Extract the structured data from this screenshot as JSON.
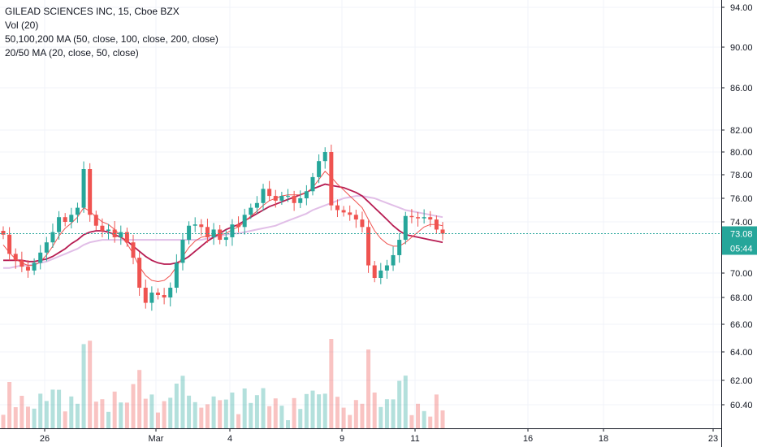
{
  "chart_data": {
    "type": "candlestick",
    "title": "GILEAD SCIENCES INC, 15, Cboe BZX",
    "indicators": [
      "Vol (20)",
      "50,100,200 MA (50, close, 100, close, 200, close)",
      "20/50 MA (20, close, 50, close)"
    ],
    "y_ticks": [
      "94.00",
      "90.00",
      "86.00",
      "82.00",
      "80.00",
      "78.00",
      "76.00",
      "74.00",
      "70.00",
      "68.00",
      "66.00",
      "64.00",
      "62.00",
      "60.40"
    ],
    "x_ticks": [
      "26",
      "Mar",
      "4",
      "9",
      "11",
      "16",
      "18",
      "23"
    ],
    "last_price": "73.08",
    "countdown": "05:44",
    "series": [
      {
        "name": "price",
        "kind": "ohlc",
        "close": [
          73.0,
          71.5,
          71.0,
          70.5,
          70.2,
          70.8,
          71.6,
          72.4,
          73.2,
          74.4,
          74.0,
          74.6,
          75.2,
          78.5,
          74.6,
          73.7,
          73.3,
          73.4,
          72.8,
          73.2,
          72.4,
          71.2,
          68.8,
          67.6,
          68.4,
          68.2,
          68.0,
          68.8,
          70.8,
          72.6,
          73.7,
          73.8,
          73.6,
          72.8,
          73.4,
          72.6,
          72.8,
          73.8,
          73.6,
          74.6,
          75.2,
          75.6,
          76.8,
          76.2,
          75.8,
          76.2,
          76.2,
          75.6,
          76.0,
          76.6,
          77.8,
          79.2,
          80.0,
          75.4,
          75.0,
          74.8,
          74.6,
          74.2,
          73.6,
          70.6,
          69.6,
          70.2,
          70.6,
          71.4,
          72.6,
          74.5,
          74.4,
          74.3,
          74.4,
          74.2,
          73.4,
          73.08
        ]
      },
      {
        "name": "MA 20",
        "color": "#ef5350",
        "values": [
          72.2,
          71.6,
          71.1,
          70.8,
          70.6,
          70.6,
          70.9,
          71.4,
          72.1,
          72.9,
          73.5,
          73.9,
          74.4,
          75.2,
          74.9,
          74.4,
          74.0,
          73.8,
          73.4,
          72.9,
          72.3,
          71.5,
          70.5,
          69.8,
          69.4,
          69.3,
          69.4,
          69.8,
          70.5,
          71.3,
          72.0,
          72.5,
          72.8,
          72.9,
          73.0,
          73.0,
          73.1,
          73.4,
          73.6,
          74.0,
          74.5,
          74.9,
          75.4,
          75.8,
          76.0,
          76.2,
          76.3,
          76.3,
          76.3,
          76.5,
          76.9,
          77.6,
          78.3,
          77.8,
          77.2,
          76.7,
          76.2,
          75.7,
          75.2,
          74.2,
          73.3,
          72.7,
          72.3,
          72.1,
          72.1,
          72.4,
          72.8,
          73.2,
          73.6,
          73.8,
          73.8,
          73.7
        ]
      },
      {
        "name": "MA 50",
        "color": "#b71c52",
        "values": [
          71.0,
          71.0,
          71.0,
          71.0,
          70.9,
          70.9,
          71.0,
          71.1,
          71.3,
          71.6,
          71.9,
          72.3,
          72.6,
          73.0,
          73.2,
          73.3,
          73.3,
          73.2,
          73.0,
          72.8,
          72.5,
          72.1,
          71.7,
          71.3,
          71.0,
          70.8,
          70.7,
          70.7,
          70.8,
          71.0,
          71.3,
          71.7,
          72.1,
          72.5,
          72.8,
          73.1,
          73.4,
          73.6,
          73.8,
          74.1,
          74.4,
          74.7,
          75.0,
          75.3,
          75.5,
          75.7,
          75.9,
          76.1,
          76.3,
          76.5,
          76.8,
          77.0,
          77.2,
          77.1,
          77.0,
          76.9,
          76.7,
          76.5,
          76.2,
          75.7,
          75.2,
          74.7,
          74.2,
          73.7,
          73.3,
          73.0,
          72.9,
          72.8,
          72.7,
          72.6,
          72.5,
          72.4
        ]
      },
      {
        "name": "MA 200",
        "color": "#e1bee7",
        "values": [
          70.4,
          70.4,
          70.5,
          70.6,
          70.6,
          70.7,
          70.8,
          70.9,
          71.1,
          71.3,
          71.5,
          71.7,
          71.9,
          72.2,
          72.4,
          72.5,
          72.6,
          72.6,
          72.6,
          72.6,
          72.6,
          72.6,
          72.6,
          72.6,
          72.6,
          72.6,
          72.6,
          72.6,
          72.6,
          72.6,
          72.6,
          72.6,
          72.6,
          72.7,
          72.8,
          72.9,
          73.0,
          73.1,
          73.1,
          73.2,
          73.3,
          73.4,
          73.5,
          73.6,
          73.7,
          73.9,
          74.1,
          74.3,
          74.5,
          74.7,
          75.0,
          75.2,
          75.4,
          75.6,
          75.8,
          76.0,
          76.1,
          76.2,
          76.2,
          76.1,
          76.0,
          75.8,
          75.6,
          75.4,
          75.2,
          75.0,
          74.9,
          74.8,
          74.7,
          74.6,
          74.5,
          74.4
        ]
      }
    ]
  }
}
